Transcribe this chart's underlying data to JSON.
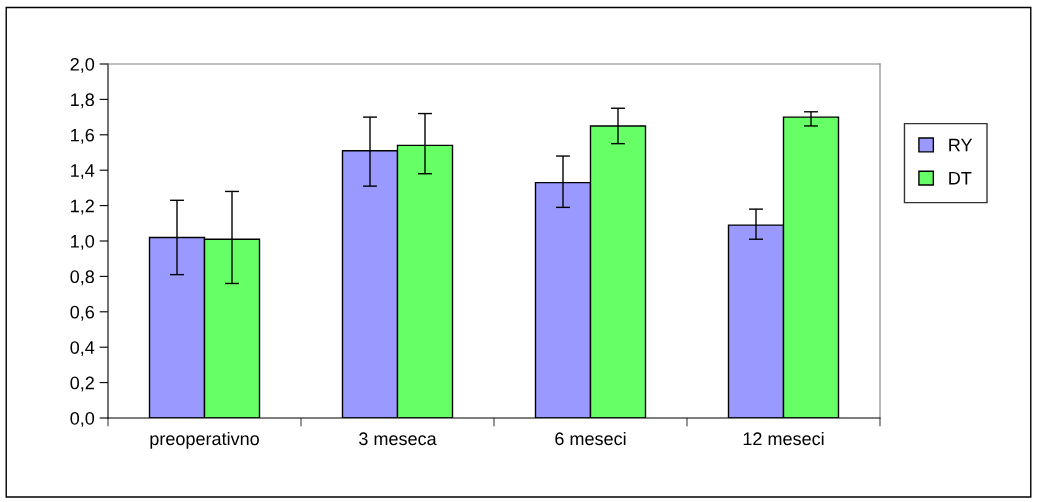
{
  "chart_data": {
    "type": "bar",
    "categories": [
      "preoperativno",
      "3 meseca",
      "6 meseci",
      "12 meseci"
    ],
    "series": [
      {
        "name": "RY",
        "color": "#9999ff",
        "values": [
          1.02,
          1.51,
          1.33,
          1.09
        ],
        "errors": [
          [
            0.81,
            1.23
          ],
          [
            1.31,
            1.7
          ],
          [
            1.19,
            1.48
          ],
          [
            1.01,
            1.18
          ]
        ]
      },
      {
        "name": "DT",
        "color": "#66ff66",
        "values": [
          1.01,
          1.54,
          1.65,
          1.7
        ],
        "errors": [
          [
            0.76,
            1.28
          ],
          [
            1.38,
            1.72
          ],
          [
            1.55,
            1.75
          ],
          [
            1.65,
            1.73
          ]
        ]
      }
    ],
    "ylim": [
      0,
      2
    ],
    "yticks": [
      {
        "value": 0,
        "label": "0,0"
      },
      {
        "value": 0.2,
        "label": "0,2"
      },
      {
        "value": 0.4,
        "label": "0,4"
      },
      {
        "value": 0.6,
        "label": "0,6"
      },
      {
        "value": 0.8,
        "label": "0,8"
      },
      {
        "value": 1.0,
        "label": "1,0"
      },
      {
        "value": 1.2,
        "label": "1,2"
      },
      {
        "value": 1.4,
        "label": "1,4"
      },
      {
        "value": 1.6,
        "label": "1,6"
      },
      {
        "value": 1.8,
        "label": "1,8"
      },
      {
        "value": 2.0,
        "label": "2,0"
      }
    ],
    "grid": false,
    "legend": "right"
  }
}
